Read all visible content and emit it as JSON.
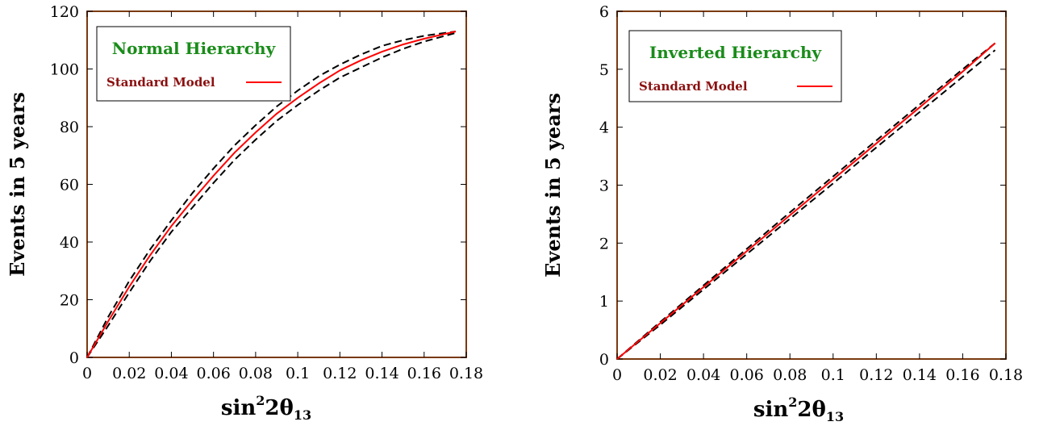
{
  "chart_data": [
    {
      "type": "line",
      "title": "",
      "ylabel": "Events in 5 years",
      "xlabel": {
        "base": "sin",
        "sup": "2",
        "mid": "2θ",
        "sub": "13"
      },
      "xlim": [
        0,
        0.18
      ],
      "ylim": [
        0,
        120
      ],
      "xticks": [
        "0",
        "0.02",
        "0.04",
        "0.06",
        "0.08",
        "0.1",
        "0.12",
        "0.14",
        "0.16",
        "0.18"
      ],
      "xtick_values": [
        0,
        0.02,
        0.04,
        0.06,
        0.08,
        0.1,
        0.12,
        0.14,
        0.16,
        0.18
      ],
      "yticks": [
        "0",
        "20",
        "40",
        "60",
        "80",
        "100",
        "120"
      ],
      "ytick_values": [
        0,
        20,
        40,
        60,
        80,
        100,
        120
      ],
      "legend": {
        "title": "Normal Hierarchy",
        "entry": "Standard Model",
        "placement": "top-left"
      },
      "frame_color": "#7a3a10",
      "series": [
        {
          "name": "Standard Model",
          "color": "#ff0000",
          "style": "solid",
          "x": [
            0,
            0.01,
            0.02,
            0.03,
            0.04,
            0.05,
            0.06,
            0.07,
            0.08,
            0.09,
            0.1,
            0.11,
            0.12,
            0.13,
            0.14,
            0.15,
            0.16,
            0.175
          ],
          "y": [
            0,
            12.5,
            24.5,
            35.5,
            45.5,
            54.5,
            63,
            71,
            78,
            84.5,
            90,
            95,
            99.5,
            103,
            106,
            108.5,
            110.5,
            113
          ]
        },
        {
          "color": "#000000",
          "style": "dashed",
          "x": [
            0,
            0.01,
            0.02,
            0.03,
            0.04,
            0.05,
            0.06,
            0.07,
            0.08,
            0.09,
            0.1,
            0.11,
            0.12,
            0.13,
            0.14,
            0.15,
            0.16,
            0.175
          ],
          "y": [
            0,
            14,
            26.5,
            37.5,
            47.5,
            57,
            65.5,
            73.5,
            80.5,
            87,
            92.5,
            97.5,
            101.5,
            105,
            108,
            110,
            111.5,
            113
          ]
        },
        {
          "color": "#000000",
          "style": "dashed",
          "x": [
            0,
            0.01,
            0.02,
            0.03,
            0.04,
            0.05,
            0.06,
            0.07,
            0.08,
            0.09,
            0.1,
            0.11,
            0.12,
            0.13,
            0.14,
            0.15,
            0.16,
            0.175
          ],
          "y": [
            0,
            11,
            22.5,
            33.5,
            43.5,
            52,
            60.5,
            68.5,
            75.5,
            82,
            87.5,
            92.5,
            97,
            100.5,
            104,
            107,
            109.5,
            112.5
          ]
        }
      ]
    },
    {
      "type": "line",
      "title": "",
      "ylabel": "Events in 5 years",
      "xlabel": {
        "base": "sin",
        "sup": "2",
        "mid": "2θ",
        "sub": "13"
      },
      "xlim": [
        0,
        0.18
      ],
      "ylim": [
        0,
        6
      ],
      "xticks": [
        "0",
        "0.02",
        "0.04",
        "0.06",
        "0.08",
        "0.1",
        "0.12",
        "0.14",
        "0.16",
        "0.18"
      ],
      "xtick_values": [
        0,
        0.02,
        0.04,
        0.06,
        0.08,
        0.1,
        0.12,
        0.14,
        0.16,
        0.18
      ],
      "yticks": [
        "0",
        "1",
        "2",
        "3",
        "4",
        "5",
        "6"
      ],
      "ytick_values": [
        0,
        1,
        2,
        3,
        4,
        5,
        6
      ],
      "legend": {
        "title": "Inverted Hierarchy",
        "entry": "Standard Model",
        "placement": "top-left"
      },
      "frame_color": "#7a3a10",
      "series": [
        {
          "name": "Standard Model",
          "color": "#ff0000",
          "style": "solid",
          "x": [
            0,
            0.02,
            0.04,
            0.06,
            0.08,
            0.1,
            0.12,
            0.14,
            0.16,
            0.175
          ],
          "y": [
            0,
            0.62,
            1.24,
            1.86,
            2.48,
            3.1,
            3.72,
            4.34,
            4.96,
            5.45
          ]
        },
        {
          "color": "#000000",
          "style": "dashed",
          "x": [
            0,
            0.02,
            0.04,
            0.06,
            0.08,
            0.1,
            0.12,
            0.14,
            0.16,
            0.175
          ],
          "y": [
            0,
            0.64,
            1.27,
            1.9,
            2.53,
            3.15,
            3.77,
            4.39,
            5.0,
            5.45
          ]
        },
        {
          "color": "#000000",
          "style": "dashed",
          "x": [
            0,
            0.02,
            0.04,
            0.06,
            0.08,
            0.1,
            0.12,
            0.14,
            0.16,
            0.175
          ],
          "y": [
            0,
            0.59,
            1.2,
            1.81,
            2.42,
            3.03,
            3.65,
            4.26,
            4.87,
            5.33
          ]
        }
      ]
    }
  ]
}
